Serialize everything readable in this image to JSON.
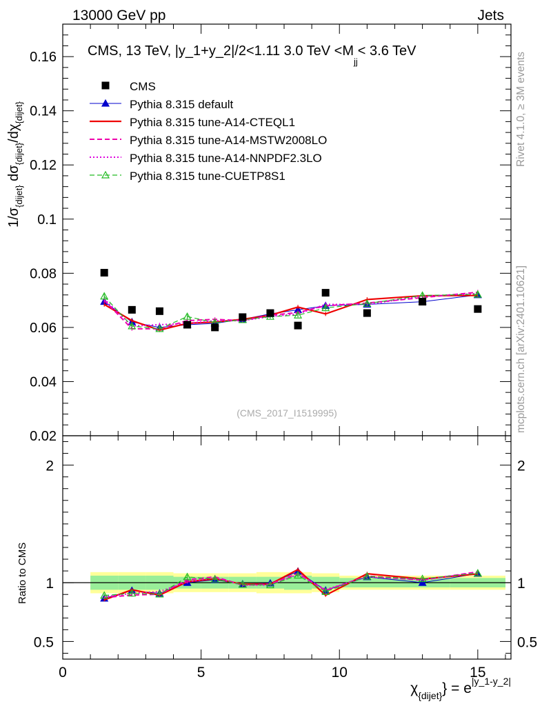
{
  "header": {
    "process": "13000 GeV pp",
    "category": "Jets",
    "side_label": "Rivet 4.1.0, ≥ 3M events",
    "side_url": "mcplots.cern.ch [arXiv:2401.10621]",
    "analysis_id": "(CMS_2017_I1519995)"
  },
  "chart_data": {
    "type": "scatter",
    "title": "CMS, 13 TeV, |y_1+y_2|/2<1.11 3.0 TeV <M",
    "title_sub": "jj",
    "title_tail": "< 3.6 TeV",
    "ylabel_main": "1/σ",
    "ylabel_sub1": "{dijet}",
    "ylabel_mid": " dσ",
    "ylabel_sub2": "{dijet}",
    "ylabel_tail": "/dχ",
    "ylabel_sub3": "{dijet}",
    "ylabel_ratio": "Ratio to CMS",
    "xlabel_main": "χ",
    "xlabel_sub": "{dijet}",
    "xlabel_eq": "} = e",
    "xlabel_sup": "|y_1-y_2|",
    "xlim": [
      0,
      16.2
    ],
    "ylim": [
      0.02,
      0.172
    ],
    "ratio_ylim": [
      0.35,
      2.25
    ],
    "x_ticks": [
      0,
      5,
      10,
      15
    ],
    "y_ticks": [
      0.02,
      0.04,
      0.06,
      0.08,
      0.1,
      0.12,
      0.14,
      0.16
    ],
    "y_tick_labels": [
      "0.02",
      "0.04",
      "0.06",
      "0.08",
      "0.1",
      "0.12",
      "0.14",
      "0.16"
    ],
    "ratio_ticks": [
      0.5,
      1,
      2
    ],
    "ratio_tick_labels": [
      "0.5",
      "1",
      "2"
    ],
    "bins": [
      [
        1,
        2
      ],
      [
        2,
        3
      ],
      [
        3,
        4
      ],
      [
        4,
        5
      ],
      [
        5,
        6
      ],
      [
        6,
        7
      ],
      [
        7,
        8
      ],
      [
        8,
        9
      ],
      [
        9,
        10
      ],
      [
        10,
        12
      ],
      [
        12,
        14
      ],
      [
        14,
        16
      ]
    ],
    "x": [
      1.5,
      2.5,
      3.5,
      4.5,
      5.5,
      6.5,
      7.5,
      8.5,
      9.5,
      11,
      13,
      15
    ],
    "data": {
      "name": "CMS",
      "values": [
        0.0802,
        0.0665,
        0.066,
        0.061,
        0.06,
        0.0638,
        0.0653,
        0.0607,
        0.0728,
        0.0653,
        0.0695,
        0.0668
      ],
      "band_inner": [
        0.06,
        0.06,
        0.06,
        0.05,
        0.05,
        0.05,
        0.05,
        0.06,
        0.05,
        0.04,
        0.04,
        0.04
      ],
      "band_outer": [
        0.09,
        0.09,
        0.09,
        0.08,
        0.08,
        0.08,
        0.09,
        0.09,
        0.08,
        0.06,
        0.06,
        0.06
      ]
    },
    "series": [
      {
        "name": "Pythia 8.315 default",
        "color": "#0000cc",
        "style": "solid",
        "width": 1,
        "marker": "triangle-filled",
        "values": [
          0.0695,
          0.062,
          0.06,
          0.061,
          0.0615,
          0.063,
          0.065,
          0.0665,
          0.068,
          0.0685,
          0.0695,
          0.072
        ]
      },
      {
        "name": "Pythia 8.315 tune-A14-CTEQL1",
        "color": "#ee0000",
        "style": "solid",
        "width": 2.2,
        "marker": "none",
        "values": [
          0.0685,
          0.0625,
          0.059,
          0.0615,
          0.062,
          0.063,
          0.0645,
          0.0675,
          0.065,
          0.0703,
          0.0717,
          0.0718
        ]
      },
      {
        "name": "Pythia 8.315 tune-A14-MSTW2008LO",
        "color": "#ee00aa",
        "style": "dashed",
        "width": 2,
        "marker": "none",
        "values": [
          0.07,
          0.0595,
          0.0595,
          0.0625,
          0.063,
          0.0625,
          0.0645,
          0.0655,
          0.068,
          0.069,
          0.071,
          0.073
        ]
      },
      {
        "name": "Pythia 8.315 tune-A14-NNPDF2.3LO",
        "color": "#dd00dd",
        "style": "dotted",
        "width": 2,
        "marker": "none",
        "values": [
          0.0705,
          0.0605,
          0.061,
          0.0615,
          0.0625,
          0.0625,
          0.064,
          0.065,
          0.0685,
          0.0685,
          0.0715,
          0.0725
        ]
      },
      {
        "name": "Pythia 8.315 tune-CUETP8S1",
        "color": "#22bb22",
        "style": "dashed",
        "width": 1.2,
        "marker": "triangle-open",
        "values": [
          0.0715,
          0.0605,
          0.0595,
          0.064,
          0.0618,
          0.0628,
          0.064,
          0.0645,
          0.0672,
          0.0688,
          0.0718,
          0.0722
        ]
      }
    ],
    "legend": "top-left"
  }
}
